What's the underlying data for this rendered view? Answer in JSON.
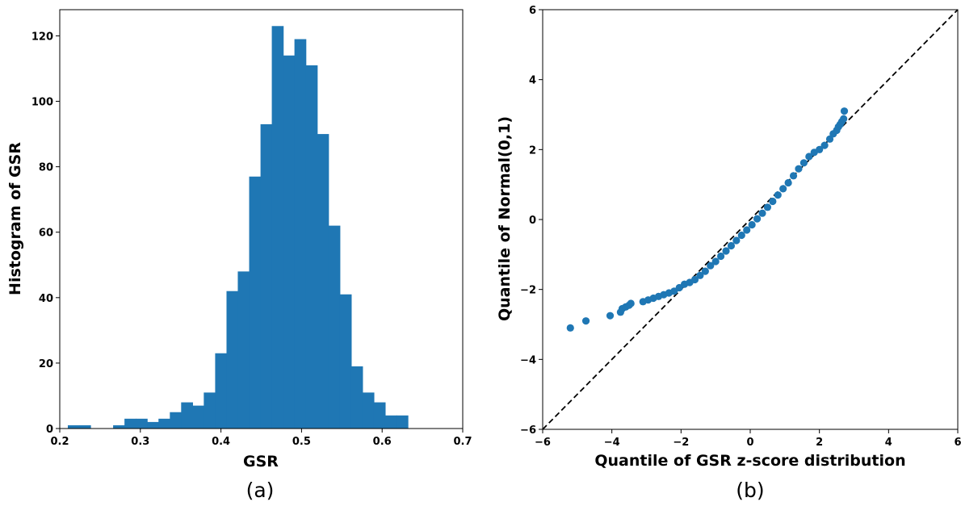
{
  "chart_data": [
    {
      "type": "bar",
      "panel_label": "(a)",
      "xlabel": "GSR",
      "ylabel": "Histogram of GSR",
      "xlim": [
        0.2,
        0.7
      ],
      "ylim": [
        0,
        128
      ],
      "xticks": [
        "0.2",
        "0.3",
        "0.4",
        "0.5",
        "0.6",
        "0.7"
      ],
      "yticks": [
        "0",
        "20",
        "40",
        "60",
        "80",
        "100",
        "120"
      ],
      "color": "#1f77b4",
      "bin_edges": [
        0.21,
        0.2241,
        0.2381,
        0.2522,
        0.2662,
        0.2803,
        0.2944,
        0.3084,
        0.3225,
        0.3366,
        0.3506,
        0.3647,
        0.3787,
        0.3928,
        0.4069,
        0.4209,
        0.435,
        0.4491,
        0.4631,
        0.4772,
        0.4912,
        0.5053,
        0.5194,
        0.5334,
        0.5475,
        0.5616,
        0.5756,
        0.5897,
        0.6037,
        0.6178,
        0.6319,
        0.6459
      ],
      "values": [
        1,
        1,
        0,
        0,
        1,
        3,
        3,
        2,
        3,
        5,
        8,
        7,
        11,
        23,
        42,
        48,
        77,
        93,
        123,
        114,
        119,
        111,
        90,
        62,
        41,
        19,
        11,
        8,
        4,
        4,
        0
      ]
    },
    {
      "type": "scatter",
      "panel_label": "(b)",
      "xlabel": "Quantile of GSR z-score distribution",
      "ylabel": "Quantile of Normal(0,1)",
      "xlim": [
        -6,
        6
      ],
      "ylim": [
        -6,
        6
      ],
      "xticks": [
        "−6",
        "−4",
        "−2",
        "0",
        "2",
        "4",
        "6"
      ],
      "yticks": [
        "−6",
        "−4",
        "−2",
        "0",
        "2",
        "4",
        "6"
      ],
      "reference_line": "y = x (dashed)",
      "color": "#1f77b4",
      "points": [
        [
          -5.2,
          -3.1
        ],
        [
          -4.75,
          -2.9
        ],
        [
          -4.05,
          -2.75
        ],
        [
          -3.75,
          -2.65
        ],
        [
          -3.7,
          -2.55
        ],
        [
          -3.6,
          -2.5
        ],
        [
          -3.5,
          -2.45
        ],
        [
          -3.45,
          -2.4
        ],
        [
          -3.1,
          -2.35
        ],
        [
          -2.95,
          -2.3
        ],
        [
          -2.8,
          -2.25
        ],
        [
          -2.65,
          -2.2
        ],
        [
          -2.5,
          -2.15
        ],
        [
          -2.35,
          -2.1
        ],
        [
          -2.2,
          -2.05
        ],
        [
          -2.05,
          -1.95
        ],
        [
          -1.9,
          -1.85
        ],
        [
          -1.75,
          -1.8
        ],
        [
          -1.6,
          -1.72
        ],
        [
          -1.45,
          -1.6
        ],
        [
          -1.3,
          -1.48
        ],
        [
          -1.15,
          -1.32
        ],
        [
          -1.0,
          -1.2
        ],
        [
          -0.85,
          -1.05
        ],
        [
          -0.7,
          -0.9
        ],
        [
          -0.55,
          -0.75
        ],
        [
          -0.4,
          -0.6
        ],
        [
          -0.25,
          -0.45
        ],
        [
          -0.1,
          -0.3
        ],
        [
          0.05,
          -0.15
        ],
        [
          0.2,
          0.02
        ],
        [
          0.35,
          0.18
        ],
        [
          0.5,
          0.35
        ],
        [
          0.65,
          0.52
        ],
        [
          0.8,
          0.7
        ],
        [
          0.95,
          0.88
        ],
        [
          1.1,
          1.05
        ],
        [
          1.25,
          1.25
        ],
        [
          1.4,
          1.45
        ],
        [
          1.55,
          1.62
        ],
        [
          1.7,
          1.8
        ],
        [
          1.85,
          1.92
        ],
        [
          2.0,
          2.0
        ],
        [
          2.15,
          2.12
        ],
        [
          2.3,
          2.3
        ],
        [
          2.4,
          2.45
        ],
        [
          2.5,
          2.55
        ],
        [
          2.55,
          2.65
        ],
        [
          2.6,
          2.72
        ],
        [
          2.65,
          2.8
        ],
        [
          2.7,
          2.88
        ],
        [
          2.72,
          3.1
        ]
      ]
    }
  ]
}
